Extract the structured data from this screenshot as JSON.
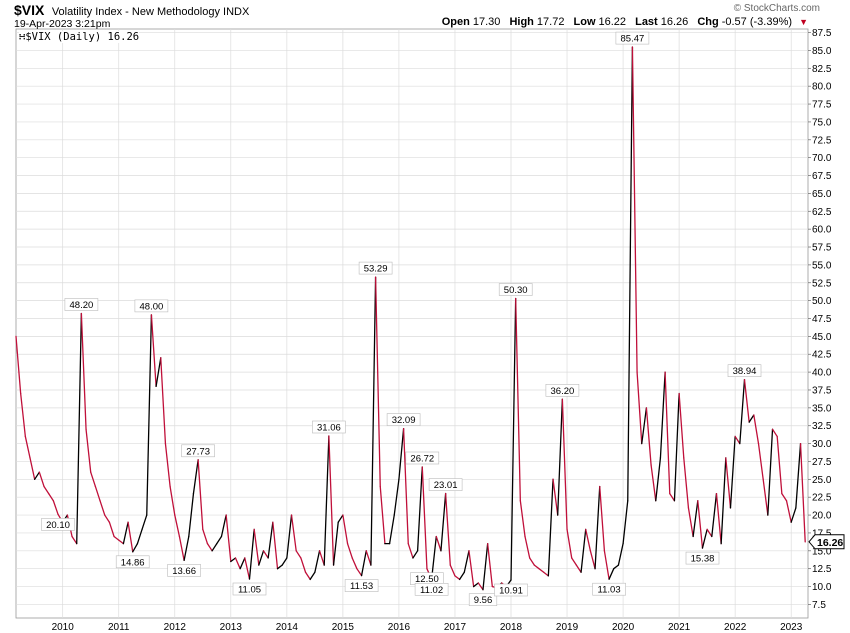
{
  "header": {
    "symbol": "$VIX",
    "name": "Volatility Index - New Methodology",
    "exchange": "INDX",
    "datetime": "19-Apr-2023 3:21pm",
    "watermark": "© StockCharts.com"
  },
  "quote": {
    "open_label": "Open",
    "open": "17.30",
    "high_label": "High",
    "high": "17.72",
    "low_label": "Low",
    "low": "16.22",
    "last_label": "Last",
    "last": "16.26",
    "chg_label": "Chg",
    "chg": "-0.57 (-3.39%)",
    "chg_icon": "down-triangle-icon"
  },
  "legend": {
    "label": "$VIX (Daily) 16.26"
  },
  "chart_data": {
    "type": "line",
    "series": [
      {
        "name": "$VIX (Daily)",
        "color": "#000000",
        "down_color": "#c0103a",
        "points": [
          [
            "2009-03",
            45
          ],
          [
            "2009-04",
            37
          ],
          [
            "2009-05",
            31
          ],
          [
            "2009-06",
            28
          ],
          [
            "2009-07",
            25
          ],
          [
            "2009-08",
            26
          ],
          [
            "2009-09",
            24
          ],
          [
            "2009-10",
            23
          ],
          [
            "2009-11",
            22
          ],
          [
            "2009-12",
            20.1
          ],
          [
            "2010-01",
            19
          ],
          [
            "2010-02",
            20
          ],
          [
            "2010-03",
            17
          ],
          [
            "2010-04",
            16
          ],
          [
            "2010-05",
            48.2
          ],
          [
            "2010-06",
            32
          ],
          [
            "2010-07",
            26
          ],
          [
            "2010-08",
            24
          ],
          [
            "2010-09",
            22
          ],
          [
            "2010-10",
            20
          ],
          [
            "2010-11",
            19
          ],
          [
            "2010-12",
            17
          ],
          [
            "2011-01",
            16.5
          ],
          [
            "2011-02",
            16
          ],
          [
            "2011-03",
            19
          ],
          [
            "2011-04",
            14.86
          ],
          [
            "2011-05",
            16
          ],
          [
            "2011-06",
            18
          ],
          [
            "2011-07",
            20
          ],
          [
            "2011-08",
            48.0
          ],
          [
            "2011-09",
            38
          ],
          [
            "2011-10",
            42
          ],
          [
            "2011-11",
            30
          ],
          [
            "2011-12",
            24
          ],
          [
            "2012-01",
            20
          ],
          [
            "2012-02",
            17
          ],
          [
            "2012-03",
            13.66
          ],
          [
            "2012-04",
            17
          ],
          [
            "2012-05",
            23
          ],
          [
            "2012-06",
            27.73
          ],
          [
            "2012-07",
            18
          ],
          [
            "2012-08",
            16
          ],
          [
            "2012-09",
            15
          ],
          [
            "2012-10",
            16
          ],
          [
            "2012-11",
            17
          ],
          [
            "2012-12",
            20
          ],
          [
            "2013-01",
            13.5
          ],
          [
            "2013-02",
            14
          ],
          [
            "2013-03",
            12.5
          ],
          [
            "2013-04",
            14
          ],
          [
            "2013-05",
            11.05
          ],
          [
            "2013-06",
            18
          ],
          [
            "2013-07",
            13
          ],
          [
            "2013-08",
            15
          ],
          [
            "2013-09",
            14
          ],
          [
            "2013-10",
            19
          ],
          [
            "2013-11",
            12.5
          ],
          [
            "2013-12",
            13
          ],
          [
            "2014-01",
            14
          ],
          [
            "2014-02",
            20
          ],
          [
            "2014-03",
            15
          ],
          [
            "2014-04",
            14
          ],
          [
            "2014-05",
            12
          ],
          [
            "2014-06",
            11
          ],
          [
            "2014-07",
            12
          ],
          [
            "2014-08",
            15
          ],
          [
            "2014-09",
            13
          ],
          [
            "2014-10",
            31.06
          ],
          [
            "2014-11",
            13
          ],
          [
            "2014-12",
            19
          ],
          [
            "2015-01",
            20
          ],
          [
            "2015-02",
            16
          ],
          [
            "2015-03",
            14
          ],
          [
            "2015-04",
            12.5
          ],
          [
            "2015-05",
            11.53
          ],
          [
            "2015-06",
            15
          ],
          [
            "2015-07",
            13
          ],
          [
            "2015-08",
            53.29
          ],
          [
            "2015-09",
            24
          ],
          [
            "2015-10",
            16
          ],
          [
            "2015-11",
            16
          ],
          [
            "2015-12",
            20
          ],
          [
            "2016-01",
            25
          ],
          [
            "2016-02",
            32.09
          ],
          [
            "2016-03",
            16
          ],
          [
            "2016-04",
            14
          ],
          [
            "2016-05",
            15
          ],
          [
            "2016-06",
            26.72
          ],
          [
            "2016-07",
            12.5
          ],
          [
            "2016-08",
            11.02
          ],
          [
            "2016-09",
            17
          ],
          [
            "2016-10",
            15
          ],
          [
            "2016-11",
            23.01
          ],
          [
            "2016-12",
            13
          ],
          [
            "2017-01",
            11.5
          ],
          [
            "2017-02",
            11
          ],
          [
            "2017-03",
            12
          ],
          [
            "2017-04",
            15
          ],
          [
            "2017-05",
            10
          ],
          [
            "2017-06",
            10.5
          ],
          [
            "2017-07",
            9.56
          ],
          [
            "2017-08",
            16
          ],
          [
            "2017-09",
            10
          ],
          [
            "2017-10",
            9.8
          ],
          [
            "2017-11",
            10.5
          ],
          [
            "2017-12",
            10
          ],
          [
            "2018-01",
            10.91
          ],
          [
            "2018-02",
            50.3
          ],
          [
            "2018-03",
            22
          ],
          [
            "2018-04",
            17
          ],
          [
            "2018-05",
            14
          ],
          [
            "2018-06",
            13
          ],
          [
            "2018-07",
            12.5
          ],
          [
            "2018-08",
            12
          ],
          [
            "2018-09",
            11.5
          ],
          [
            "2018-10",
            25
          ],
          [
            "2018-11",
            20
          ],
          [
            "2018-12",
            36.2
          ],
          [
            "2019-01",
            18
          ],
          [
            "2019-02",
            14
          ],
          [
            "2019-03",
            13
          ],
          [
            "2019-04",
            12
          ],
          [
            "2019-05",
            18
          ],
          [
            "2019-06",
            15
          ],
          [
            "2019-07",
            12.5
          ],
          [
            "2019-08",
            24
          ],
          [
            "2019-09",
            15
          ],
          [
            "2019-10",
            11.03
          ],
          [
            "2019-11",
            12.5
          ],
          [
            "2019-12",
            13
          ],
          [
            "2020-01",
            16
          ],
          [
            "2020-02",
            22
          ],
          [
            "2020-03",
            85.47
          ],
          [
            "2020-04",
            40
          ],
          [
            "2020-05",
            30
          ],
          [
            "2020-06",
            35
          ],
          [
            "2020-07",
            27
          ],
          [
            "2020-08",
            22
          ],
          [
            "2020-09",
            28
          ],
          [
            "2020-10",
            40
          ],
          [
            "2020-11",
            23
          ],
          [
            "2020-12",
            22
          ],
          [
            "2021-01",
            37
          ],
          [
            "2021-02",
            28
          ],
          [
            "2021-03",
            21
          ],
          [
            "2021-04",
            17
          ],
          [
            "2021-05",
            22
          ],
          [
            "2021-06",
            15.38
          ],
          [
            "2021-07",
            18
          ],
          [
            "2021-08",
            17
          ],
          [
            "2021-09",
            23
          ],
          [
            "2021-10",
            16
          ],
          [
            "2021-11",
            28
          ],
          [
            "2021-12",
            21
          ],
          [
            "2022-01",
            31
          ],
          [
            "2022-02",
            30
          ],
          [
            "2022-03",
            38.94
          ],
          [
            "2022-04",
            33
          ],
          [
            "2022-05",
            34
          ],
          [
            "2022-06",
            30
          ],
          [
            "2022-07",
            25
          ],
          [
            "2022-08",
            20
          ],
          [
            "2022-09",
            32
          ],
          [
            "2022-10",
            31
          ],
          [
            "2022-11",
            23
          ],
          [
            "2022-12",
            22
          ],
          [
            "2023-01",
            19
          ],
          [
            "2023-02",
            21
          ],
          [
            "2023-03",
            30
          ],
          [
            "2023-04",
            16.26
          ]
        ]
      }
    ],
    "x_range": [
      "2009-03",
      "2023-04"
    ],
    "x_ticks": [
      "2010",
      "2011",
      "2012",
      "2013",
      "2014",
      "2015",
      "2016",
      "2017",
      "2018",
      "2019",
      "2020",
      "2021",
      "2022",
      "2023"
    ],
    "ylim": [
      5.6,
      88
    ],
    "y_ticks": [
      7.5,
      10.0,
      12.5,
      15.0,
      17.5,
      20.0,
      22.5,
      25.0,
      27.5,
      30.0,
      32.5,
      35.0,
      37.5,
      40.0,
      42.5,
      45.0,
      47.5,
      50.0,
      52.5,
      55.0,
      57.5,
      60.0,
      62.5,
      65.0,
      67.5,
      70.0,
      72.5,
      75.0,
      77.5,
      80.0,
      82.5,
      85.0,
      87.5
    ],
    "y_axis_side": "right",
    "grid": true,
    "annotations": [
      {
        "date": "2009-12",
        "value": 20.1,
        "label": "20.10",
        "pos": "below"
      },
      {
        "date": "2010-05",
        "value": 48.2,
        "label": "48.20",
        "pos": "above"
      },
      {
        "date": "2011-04",
        "value": 14.86,
        "label": "14.86",
        "pos": "below"
      },
      {
        "date": "2011-08",
        "value": 48.0,
        "label": "48.00",
        "pos": "above"
      },
      {
        "date": "2012-03",
        "value": 13.66,
        "label": "13.66",
        "pos": "below"
      },
      {
        "date": "2012-06",
        "value": 27.73,
        "label": "27.73",
        "pos": "above"
      },
      {
        "date": "2013-05",
        "value": 11.05,
        "label": "11.05",
        "pos": "below"
      },
      {
        "date": "2014-10",
        "value": 31.06,
        "label": "31.06",
        "pos": "above"
      },
      {
        "date": "2015-05",
        "value": 11.53,
        "label": "11.53",
        "pos": "below"
      },
      {
        "date": "2015-08",
        "value": 53.29,
        "label": "53.29",
        "pos": "above"
      },
      {
        "date": "2016-02",
        "value": 32.09,
        "label": "32.09",
        "pos": "above"
      },
      {
        "date": "2016-06",
        "value": 26.72,
        "label": "26.72",
        "pos": "above"
      },
      {
        "date": "2016-07",
        "value": 12.5,
        "label": "12.50",
        "pos": "below"
      },
      {
        "date": "2016-08",
        "value": 11.02,
        "label": "11.02",
        "pos": "below"
      },
      {
        "date": "2016-11",
        "value": 23.01,
        "label": "23.01",
        "pos": "above"
      },
      {
        "date": "2017-07",
        "value": 9.56,
        "label": "9.56",
        "pos": "below"
      },
      {
        "date": "2018-01",
        "value": 10.91,
        "label": "10.91",
        "pos": "below"
      },
      {
        "date": "2018-02",
        "value": 50.3,
        "label": "50.30",
        "pos": "above"
      },
      {
        "date": "2018-12",
        "value": 36.2,
        "label": "36.20",
        "pos": "above"
      },
      {
        "date": "2019-10",
        "value": 11.03,
        "label": "11.03",
        "pos": "below"
      },
      {
        "date": "2020-03",
        "value": 85.47,
        "label": "85.47",
        "pos": "above"
      },
      {
        "date": "2021-06",
        "value": 15.38,
        "label": "15.38",
        "pos": "below"
      },
      {
        "date": "2022-03",
        "value": 38.94,
        "label": "38.94",
        "pos": "above"
      }
    ],
    "last_value": {
      "value": 16.26,
      "label": "16.26"
    }
  }
}
